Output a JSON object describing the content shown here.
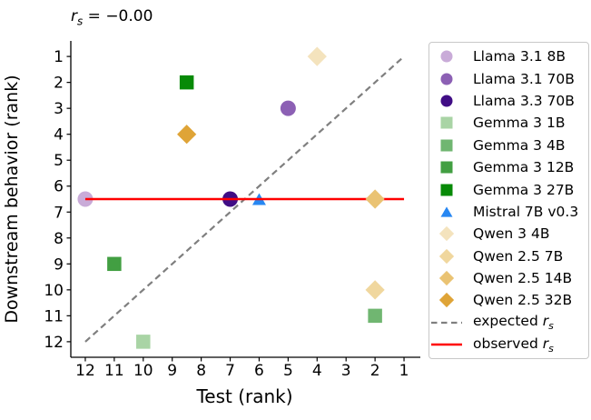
{
  "chart_data": {
    "type": "scatter",
    "title": "r_s = −0.00",
    "title_parts": {
      "var": "r",
      "sub": "s",
      "rest": " = −0.00"
    },
    "xlabel": "Test (rank)",
    "ylabel": "Downstream behavior (rank)",
    "xlim": [
      12.5,
      0.5
    ],
    "ylim": [
      0.4,
      12.6
    ],
    "x_ticks": [
      12,
      11,
      10,
      9,
      8,
      7,
      6,
      5,
      4,
      3,
      2,
      1
    ],
    "y_ticks": [
      1,
      2,
      3,
      4,
      5,
      6,
      7,
      8,
      9,
      10,
      11,
      12
    ],
    "grid": false,
    "legend_position": "outside-right",
    "series": [
      {
        "name": "Llama 3.1 8B",
        "marker": "circle",
        "color": "#c9abd8",
        "x": 12,
        "y": 6.5
      },
      {
        "name": "Llama 3.1 70B",
        "marker": "circle",
        "color": "#8c60b4",
        "x": 5,
        "y": 3
      },
      {
        "name": "Llama 3.3 70B",
        "marker": "circle",
        "color": "#400d85",
        "x": 7,
        "y": 6.5
      },
      {
        "name": "Gemma 3 1B",
        "marker": "square",
        "color": "#a9d4a5",
        "x": 10,
        "y": 12
      },
      {
        "name": "Gemma 3 4B",
        "marker": "square",
        "color": "#70b671",
        "x": 2,
        "y": 11
      },
      {
        "name": "Gemma 3 12B",
        "marker": "square",
        "color": "#429f42",
        "x": 11,
        "y": 9
      },
      {
        "name": "Gemma 3 27B",
        "marker": "square",
        "color": "#078a07",
        "x": 8.5,
        "y": 2
      },
      {
        "name": "Mistral 7B v0.3",
        "marker": "triangle",
        "color": "#2787f2",
        "x": 6,
        "y": 6.5
      },
      {
        "name": "Qwen 3 4B",
        "marker": "diamond",
        "color": "#f4e3bd",
        "x": 4,
        "y": 1
      },
      {
        "name": "Qwen 2.5 7B",
        "marker": "diamond",
        "color": "#f0d79e",
        "x": 2,
        "y": 10
      },
      {
        "name": "Qwen 2.5 14B",
        "marker": "diamond",
        "color": "#eac373",
        "x": 2,
        "y": 6.5
      },
      {
        "name": "Qwen 2.5 32B",
        "marker": "diamond",
        "color": "#dfa437",
        "x": 8.5,
        "y": 4
      }
    ],
    "reference_lines": [
      {
        "name": "expected r_s",
        "legend_prefix": "expected ",
        "math_var": "r",
        "math_sub": "s",
        "style": "dashed",
        "color": "#7f7f7f",
        "from": [
          12,
          12
        ],
        "to": [
          1,
          1
        ]
      },
      {
        "name": "observed r_s",
        "legend_prefix": "observed ",
        "math_var": "r",
        "math_sub": "s",
        "style": "solid",
        "color": "#ff0000",
        "from": [
          12,
          6.5
        ],
        "to": [
          1,
          6.5
        ]
      }
    ]
  }
}
